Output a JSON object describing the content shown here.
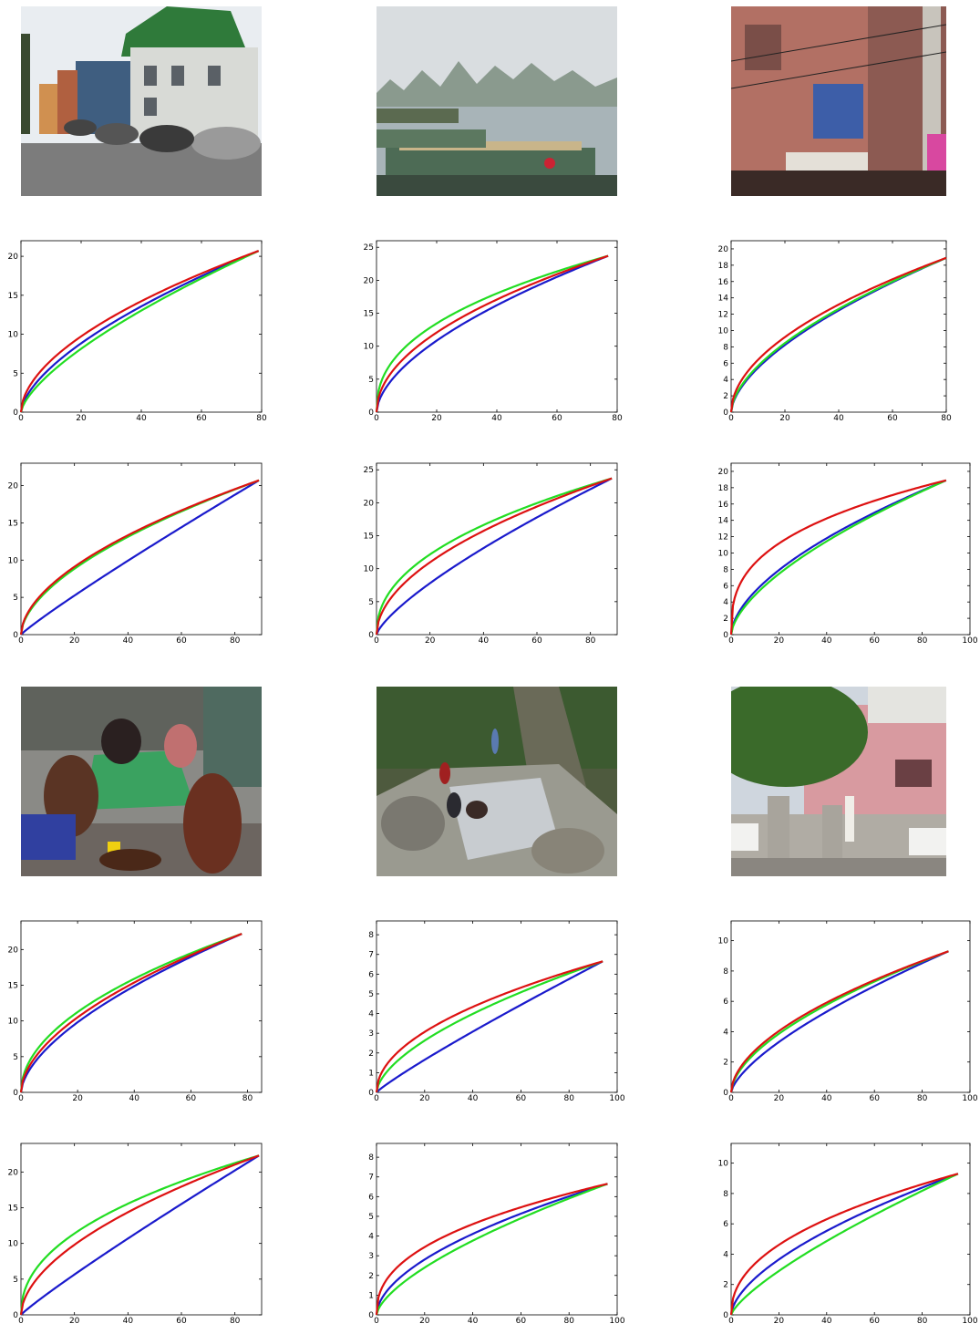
{
  "colors": {
    "blue": "#1a1acc",
    "green": "#22dd22",
    "red": "#dd1111",
    "axis": "#000000"
  },
  "photos": [
    {
      "subject": "street-houses"
    },
    {
      "subject": "river-boats"
    },
    {
      "subject": "brick-building"
    },
    {
      "subject": "mahjong-players"
    },
    {
      "subject": "rocky-stream"
    },
    {
      "subject": "pink-building"
    }
  ],
  "chart_data": [
    {
      "type": "line",
      "xlim": [
        0,
        80
      ],
      "ylim": [
        0,
        22
      ],
      "xticks": [
        0,
        20,
        40,
        60,
        80
      ],
      "yticks": [
        0,
        5,
        10,
        15,
        20
      ],
      "xmax": 79,
      "endY": 20.7,
      "curves": {
        "red": 0.55,
        "blue": 0.62,
        "green": 0.68
      }
    },
    {
      "type": "line",
      "xlim": [
        0,
        80
      ],
      "ylim": [
        0,
        26
      ],
      "xticks": [
        0,
        20,
        40,
        60,
        80
      ],
      "yticks": [
        0,
        5,
        10,
        15,
        20,
        25
      ],
      "xmax": 77,
      "endY": 23.7,
      "curves": {
        "red": 0.5,
        "blue": 0.58,
        "green": 0.42
      }
    },
    {
      "type": "line",
      "xlim": [
        0,
        80
      ],
      "ylim": [
        0,
        21
      ],
      "xticks": [
        0,
        20,
        40,
        60,
        80
      ],
      "yticks": [
        0,
        2,
        4,
        6,
        8,
        10,
        12,
        14,
        16,
        18,
        20
      ],
      "xmax": 80,
      "endY": 18.9,
      "curves": {
        "red": 0.52,
        "blue": 0.6,
        "green": 0.58
      }
    },
    {
      "type": "line",
      "xlim": [
        0,
        90
      ],
      "ylim": [
        0,
        23
      ],
      "xticks": [
        0,
        20,
        40,
        60,
        80
      ],
      "yticks": [
        0,
        5,
        10,
        15,
        20
      ],
      "xmax": 89,
      "endY": 20.7,
      "curves": {
        "red": 0.55,
        "blue": 0.92,
        "green": 0.57
      }
    },
    {
      "type": "line",
      "xlim": [
        0,
        90
      ],
      "ylim": [
        0,
        26
      ],
      "xticks": [
        0,
        20,
        40,
        60,
        80
      ],
      "yticks": [
        0,
        5,
        10,
        15,
        20,
        25
      ],
      "xmax": 88,
      "endY": 23.7,
      "curves": {
        "red": 0.52,
        "blue": 0.75,
        "green": 0.45
      }
    },
    {
      "type": "line",
      "xlim": [
        0,
        100
      ],
      "ylim": [
        0,
        21
      ],
      "xticks": [
        0,
        20,
        40,
        60,
        80,
        100
      ],
      "yticks": [
        0,
        2,
        4,
        6,
        8,
        10,
        12,
        14,
        16,
        18,
        20
      ],
      "xmax": 90,
      "endY": 18.9,
      "curves": {
        "red": 0.35,
        "blue": 0.58,
        "green": 0.62
      }
    },
    {
      "type": "line",
      "xlim": [
        0,
        85
      ],
      "ylim": [
        0,
        24
      ],
      "xticks": [
        0,
        20,
        40,
        60,
        80
      ],
      "yticks": [
        0,
        5,
        10,
        15,
        20
      ],
      "xmax": 78,
      "endY": 22.2,
      "curves": {
        "red": 0.55,
        "blue": 0.6,
        "green": 0.5
      }
    },
    {
      "type": "line",
      "xlim": [
        0,
        100
      ],
      "ylim": [
        0,
        8.7
      ],
      "xticks": [
        0,
        20,
        40,
        60,
        80,
        100
      ],
      "yticks": [
        0,
        1,
        2,
        3,
        4,
        5,
        6,
        7,
        8
      ],
      "xmax": 94,
      "endY": 6.65,
      "curves": {
        "red": 0.5,
        "blue": 0.9,
        "green": 0.6
      }
    },
    {
      "type": "line",
      "xlim": [
        0,
        100
      ],
      "ylim": [
        0,
        11.3
      ],
      "xticks": [
        0,
        20,
        40,
        60,
        80,
        100
      ],
      "yticks": [
        0,
        2,
        4,
        6,
        8,
        10
      ],
      "xmax": 91,
      "endY": 9.3,
      "curves": {
        "red": 0.55,
        "blue": 0.68,
        "green": 0.58
      }
    },
    {
      "type": "line",
      "xlim": [
        0,
        90
      ],
      "ylim": [
        0,
        24
      ],
      "xticks": [
        0,
        20,
        40,
        60,
        80
      ],
      "yticks": [
        0,
        5,
        10,
        15,
        20
      ],
      "xmax": 89,
      "endY": 22.3,
      "curves": {
        "red": 0.55,
        "blue": 0.92,
        "green": 0.45
      }
    },
    {
      "type": "line",
      "xlim": [
        0,
        100
      ],
      "ylim": [
        0,
        8.7
      ],
      "xticks": [
        0,
        20,
        40,
        60,
        80,
        100
      ],
      "yticks": [
        0,
        1,
        2,
        3,
        4,
        5,
        6,
        7,
        8
      ],
      "xmax": 96,
      "endY": 6.65,
      "curves": {
        "red": 0.42,
        "blue": 0.55,
        "green": 0.65
      }
    },
    {
      "type": "line",
      "xlim": [
        0,
        100
      ],
      "ylim": [
        0,
        11.3
      ],
      "xticks": [
        0,
        20,
        40,
        60,
        80,
        100
      ],
      "yticks": [
        0,
        2,
        4,
        6,
        8,
        10
      ],
      "xmax": 95,
      "endY": 9.3,
      "curves": {
        "red": 0.45,
        "blue": 0.6,
        "green": 0.75
      }
    }
  ]
}
